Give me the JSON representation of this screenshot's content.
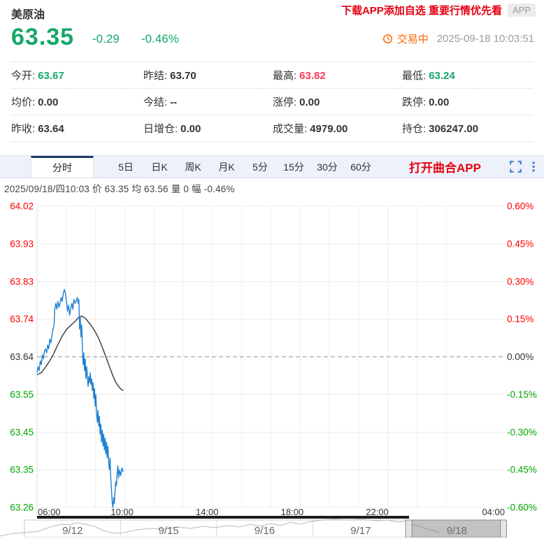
{
  "header": {
    "title": "美原油",
    "banner": "下载APP添加自选 重要行情优先看",
    "badge": "APP"
  },
  "quote": {
    "price": "63.35",
    "change": "-0.29",
    "change_pct": "-0.46%",
    "status": "交易中",
    "timestamp": "2025-09-18 10:03:51",
    "clock_icon": "clock-icon"
  },
  "stats": {
    "rows": [
      [
        {
          "label": "今开",
          "value": "63.67",
          "color": "green"
        },
        {
          "label": "昨结",
          "value": "63.70",
          "color": "black"
        },
        {
          "label": "最高",
          "value": "63.82",
          "color": "red"
        },
        {
          "label": "最低",
          "value": "63.24",
          "color": "green"
        }
      ],
      [
        {
          "label": "均价",
          "value": "0.00",
          "color": "black"
        },
        {
          "label": "今结",
          "value": "--",
          "color": "black"
        },
        {
          "label": "涨停",
          "value": "0.00",
          "color": "black"
        },
        {
          "label": "跌停",
          "value": "0.00",
          "color": "black"
        }
      ],
      [
        {
          "label": "昨收",
          "value": "63.64",
          "color": "black"
        },
        {
          "label": "日增仓",
          "value": "0.00",
          "color": "black"
        },
        {
          "label": "成交量",
          "value": "4979.00",
          "color": "black"
        },
        {
          "label": "持仓",
          "value": "306247.00",
          "color": "black"
        }
      ]
    ]
  },
  "tabs": {
    "items": [
      "分时",
      "5日",
      "日K",
      "周K",
      "月K",
      "5分",
      "15分",
      "30分",
      "60分"
    ],
    "active": 0,
    "action": "打开曲合APP",
    "icons": [
      "fullscreen-icon",
      "kebab-menu-icon"
    ]
  },
  "info_line": "2025/09/18/四10:03  价 63.35  均 63.56  量 0  幅 -0.46%",
  "chart_data": {
    "type": "line",
    "title": "美原油 分时图 (intraday)",
    "x_unit": "minutes since 06:00",
    "x_range": [
      0,
      1320
    ],
    "x_ticks": [
      "06:00",
      "10:00",
      "14:00",
      "18:00",
      "22:00",
      "04:00"
    ],
    "x_tick_minutes": [
      0,
      240,
      480,
      720,
      960,
      1320
    ],
    "ylim": [
      63.26,
      64.02
    ],
    "prev_close": 63.64,
    "y_left_ticks": [
      "64.02",
      "63.93",
      "63.83",
      "63.74",
      "63.64",
      "63.55",
      "63.45",
      "63.35",
      "63.26"
    ],
    "y_right_ticks": [
      "0.60%",
      "0.45%",
      "0.30%",
      "0.15%",
      "0.00%",
      "-0.15%",
      "-0.30%",
      "-0.45%",
      "-0.60%"
    ],
    "grid": true,
    "legend_position": "none",
    "series": [
      {
        "name": "价",
        "color": "#1f80d2",
        "points": [
          [
            0,
            63.6
          ],
          [
            3,
            63.615
          ],
          [
            6,
            63.605
          ],
          [
            9,
            63.63
          ],
          [
            12,
            63.62
          ],
          [
            15,
            63.645
          ],
          [
            18,
            63.635
          ],
          [
            21,
            63.655
          ],
          [
            24,
            63.66
          ],
          [
            27,
            63.65
          ],
          [
            30,
            63.67
          ],
          [
            33,
            63.66
          ],
          [
            36,
            63.685
          ],
          [
            39,
            63.675
          ],
          [
            42,
            63.695
          ],
          [
            45,
            63.71
          ],
          [
            48,
            63.72
          ],
          [
            50,
            63.76
          ],
          [
            53,
            63.775
          ],
          [
            56,
            63.76
          ],
          [
            59,
            63.78
          ],
          [
            62,
            63.765
          ],
          [
            65,
            63.775
          ],
          [
            68,
            63.79
          ],
          [
            71,
            63.78
          ],
          [
            74,
            63.8
          ],
          [
            77,
            63.81
          ],
          [
            80,
            63.8
          ],
          [
            83,
            63.78
          ],
          [
            86,
            63.755
          ],
          [
            89,
            63.77
          ],
          [
            92,
            63.745
          ],
          [
            95,
            63.76
          ],
          [
            98,
            63.775
          ],
          [
            101,
            63.76
          ],
          [
            104,
            63.785
          ],
          [
            107,
            63.775
          ],
          [
            110,
            63.78
          ],
          [
            113,
            63.79
          ],
          [
            116,
            63.775
          ],
          [
            118,
            63.785
          ],
          [
            120,
            63.71
          ],
          [
            122,
            63.74
          ],
          [
            124,
            63.69
          ],
          [
            126,
            63.72
          ],
          [
            128,
            63.655
          ],
          [
            130,
            63.62
          ],
          [
            132,
            63.65
          ],
          [
            134,
            63.605
          ],
          [
            136,
            63.635
          ],
          [
            138,
            63.585
          ],
          [
            140,
            63.615
          ],
          [
            142,
            63.59
          ],
          [
            144,
            63.565
          ],
          [
            146,
            63.59
          ],
          [
            148,
            63.575
          ],
          [
            150,
            63.6
          ],
          [
            152,
            63.57
          ],
          [
            154,
            63.585
          ],
          [
            156,
            63.555
          ],
          [
            158,
            63.575
          ],
          [
            160,
            63.535
          ],
          [
            162,
            63.56
          ],
          [
            164,
            63.515
          ],
          [
            166,
            63.545
          ],
          [
            168,
            63.5
          ],
          [
            170,
            63.475
          ],
          [
            172,
            63.505
          ],
          [
            174,
            63.465
          ],
          [
            176,
            63.49
          ],
          [
            178,
            63.445
          ],
          [
            180,
            63.47
          ],
          [
            182,
            63.425
          ],
          [
            184,
            63.455
          ],
          [
            186,
            63.415
          ],
          [
            188,
            63.445
          ],
          [
            190,
            63.405
          ],
          [
            192,
            63.435
          ],
          [
            194,
            63.395
          ],
          [
            196,
            63.425
          ],
          [
            198,
            63.385
          ],
          [
            200,
            63.415
          ],
          [
            202,
            63.375
          ],
          [
            204,
            63.355
          ],
          [
            206,
            63.385
          ],
          [
            208,
            63.335
          ],
          [
            210,
            63.305
          ],
          [
            212,
            63.275
          ],
          [
            214,
            63.26
          ],
          [
            216,
            63.285
          ],
          [
            218,
            63.27
          ],
          [
            220,
            63.3
          ],
          [
            222,
            63.325
          ],
          [
            224,
            63.315
          ],
          [
            226,
            63.345
          ],
          [
            228,
            63.365
          ],
          [
            230,
            63.335
          ],
          [
            233,
            63.355
          ],
          [
            236,
            63.34
          ],
          [
            240,
            63.36
          ],
          [
            243,
            63.35
          ]
        ]
      },
      {
        "name": "均",
        "color": "#444444",
        "points": [
          [
            0,
            63.595
          ],
          [
            12,
            63.6
          ],
          [
            24,
            63.614
          ],
          [
            36,
            63.63
          ],
          [
            48,
            63.65
          ],
          [
            60,
            63.673
          ],
          [
            72,
            63.694
          ],
          [
            84,
            63.71
          ],
          [
            96,
            63.72
          ],
          [
            108,
            63.73
          ],
          [
            118,
            63.74
          ],
          [
            126,
            63.743
          ],
          [
            134,
            63.739
          ],
          [
            142,
            63.731
          ],
          [
            150,
            63.722
          ],
          [
            158,
            63.712
          ],
          [
            166,
            63.7
          ],
          [
            174,
            63.686
          ],
          [
            182,
            63.669
          ],
          [
            190,
            63.65
          ],
          [
            198,
            63.631
          ],
          [
            206,
            63.611
          ],
          [
            214,
            63.592
          ],
          [
            222,
            63.576
          ],
          [
            230,
            63.565
          ],
          [
            236,
            63.559
          ],
          [
            243,
            63.555
          ]
        ]
      }
    ]
  },
  "navigator": {
    "dates": [
      "9/12",
      "9/15",
      "9/16",
      "9/17",
      "9/18"
    ],
    "selected": "9/18",
    "spark": [
      [
        0,
        483
      ],
      [
        14,
        480
      ],
      [
        35,
        478
      ],
      [
        55,
        476
      ],
      [
        72,
        470
      ],
      [
        88,
        466
      ],
      [
        100,
        467
      ],
      [
        110,
        464
      ],
      [
        122,
        466
      ],
      [
        135,
        469
      ],
      [
        148,
        475
      ],
      [
        162,
        479
      ],
      [
        178,
        478
      ],
      [
        195,
        474
      ],
      [
        215,
        472
      ],
      [
        235,
        473
      ],
      [
        255,
        470
      ],
      [
        272,
        472
      ],
      [
        290,
        469
      ],
      [
        308,
        471
      ],
      [
        325,
        468
      ],
      [
        342,
        470
      ],
      [
        358,
        466
      ],
      [
        372,
        469
      ],
      [
        388,
        465
      ],
      [
        402,
        468
      ],
      [
        415,
        463
      ],
      [
        430,
        466
      ],
      [
        445,
        462
      ],
      [
        462,
        460
      ],
      [
        480,
        459
      ],
      [
        500,
        460
      ],
      [
        518,
        459
      ],
      [
        538,
        461
      ],
      [
        555,
        460
      ],
      [
        568,
        463
      ],
      [
        578,
        462
      ],
      [
        586,
        465
      ],
      [
        596,
        468
      ],
      [
        606,
        471
      ],
      [
        616,
        474
      ],
      [
        628,
        478
      ]
    ]
  },
  "colors": {
    "green": "#16a76b",
    "red": "#fb3a52",
    "black": "#333333",
    "axis_red": "#ff0000",
    "axis_green": "#00a500",
    "axis_black": "#333333",
    "accent_orange": "#ff6600",
    "banner_red": "#e60012",
    "line_blue": "#1f80d2",
    "line_avg": "#444444",
    "grid": "#ececec",
    "link_blue": "#4a86d8"
  }
}
